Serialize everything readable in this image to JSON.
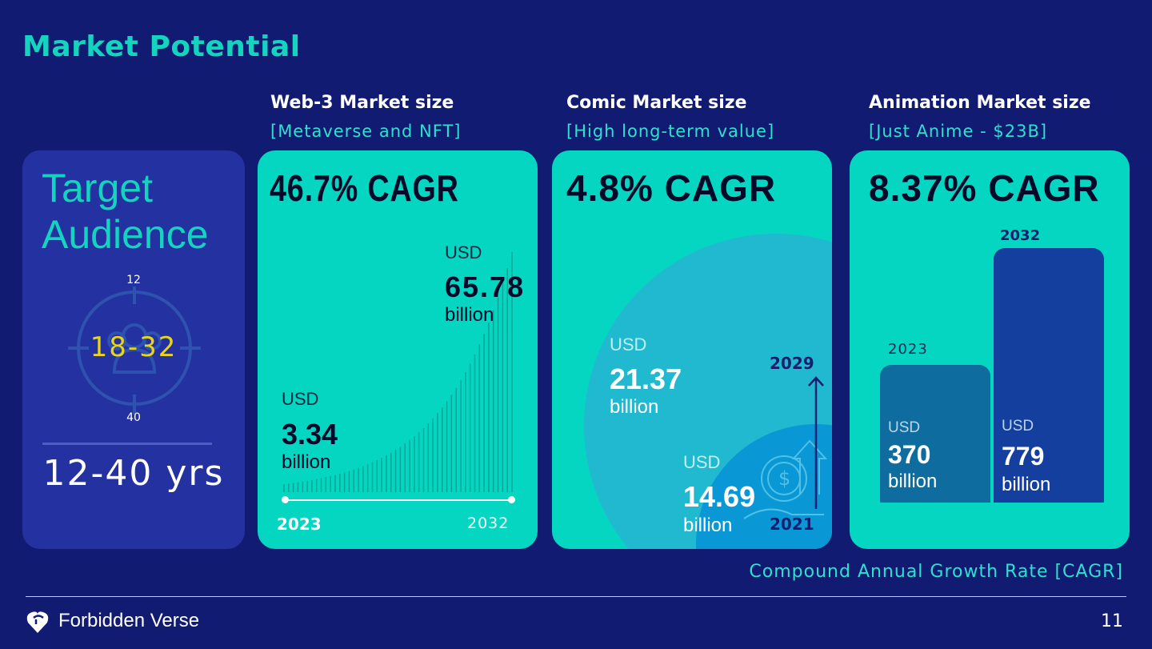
{
  "title": "Market Potential",
  "audience": {
    "heading_line1": "Target",
    "heading_line2": "Audience",
    "top_age": "12",
    "core_range": "18-32",
    "bottom_age": "40",
    "range": "12-40 yrs"
  },
  "web3": {
    "heading": "Web-3 Market size",
    "sub": "[Metaverse  and NFT]",
    "cagr": "46.7% CAGR",
    "start": {
      "usd": "USD",
      "value": "3.34",
      "unit": "billion",
      "year": "2023"
    },
    "end": {
      "usd": "USD",
      "value": "65.78",
      "unit": "billion",
      "year": "2032"
    }
  },
  "comic": {
    "heading": "Comic Market size",
    "sub": "[High long-term value]",
    "cagr": "4.8% CAGR",
    "end": {
      "usd": "USD",
      "value": "21.37",
      "unit": "billion",
      "year": "2029"
    },
    "start": {
      "usd": "USD",
      "value": "14.69",
      "unit": "billion",
      "year": "2021"
    }
  },
  "anim": {
    "heading": "Animation Market size",
    "sub": "[Just Anime - $23B]",
    "cagr": "8.37% CAGR",
    "start": {
      "year": "2023",
      "usd": "USD",
      "value": "370",
      "unit": "billion"
    },
    "end": {
      "year": "2032",
      "usd": "USD",
      "value": "779",
      "unit": "billion"
    }
  },
  "footnote": "Compound Annual Growth Rate [CAGR]",
  "footer": {
    "brand": "Forbidden Verse",
    "page": "11"
  },
  "colors": {
    "background": "#121b72",
    "teal": "#05d6c1",
    "panel": "#2431a0",
    "accent_yellow": "#e8d418"
  }
}
